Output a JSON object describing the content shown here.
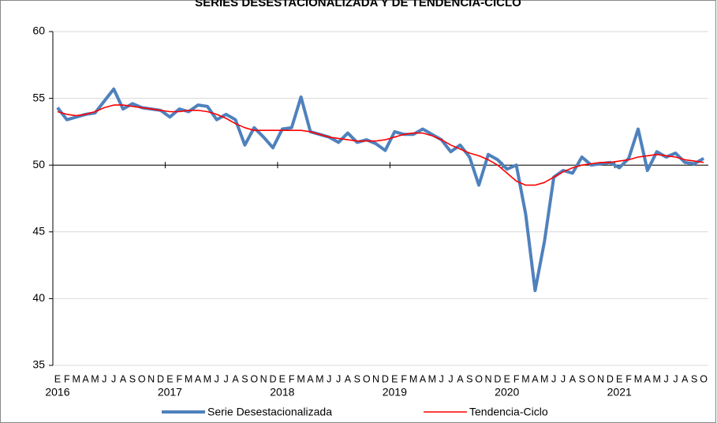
{
  "chart_data": {
    "type": "line",
    "title": "SERIES DESESTACIONALIZADA Y DE TENDENCIA-CICLO",
    "categories": [
      "E",
      "F",
      "M",
      "A",
      "M",
      "J",
      "J",
      "A",
      "S",
      "O",
      "N",
      "D",
      "E",
      "F",
      "M",
      "A",
      "M",
      "J",
      "J",
      "A",
      "S",
      "O",
      "N",
      "D",
      "E",
      "F",
      "M",
      "A",
      "M",
      "J",
      "J",
      "A",
      "S",
      "O",
      "N",
      "D",
      "E",
      "F",
      "M",
      "A",
      "M",
      "J",
      "J",
      "A",
      "S",
      "O",
      "N",
      "D",
      "E",
      "F",
      "M",
      "A",
      "M",
      "J",
      "J",
      "A",
      "S",
      "O",
      "N",
      "D",
      "E",
      "F",
      "M",
      "A",
      "M",
      "J",
      "J",
      "A",
      "S",
      "O"
    ],
    "years": [
      "2016",
      "2017",
      "2018",
      "2019",
      "2020",
      "2021"
    ],
    "series": [
      {
        "name": "Serie Desestacionalizada",
        "color": "#4f81bd",
        "width": 4,
        "values": [
          54.3,
          53.4,
          53.6,
          53.8,
          53.9,
          54.8,
          55.7,
          54.2,
          54.6,
          54.3,
          54.2,
          54.1,
          53.6,
          54.2,
          54.0,
          54.5,
          54.4,
          53.4,
          53.8,
          53.4,
          51.5,
          52.8,
          52.1,
          51.3,
          52.7,
          52.8,
          55.1,
          52.5,
          52.3,
          52.1,
          51.7,
          52.4,
          51.7,
          51.9,
          51.6,
          51.1,
          52.5,
          52.3,
          52.3,
          52.7,
          52.3,
          51.9,
          51.0,
          51.5,
          50.6,
          48.5,
          50.8,
          50.4,
          49.7,
          50.0,
          46.3,
          40.6,
          44.3,
          49.1,
          49.6,
          49.4,
          50.6,
          50.0,
          50.1,
          50.2,
          49.8,
          50.5,
          52.7,
          49.6,
          51.0,
          50.6,
          50.9,
          50.2,
          50.1,
          50.5
        ]
      },
      {
        "name": "Tendencia-Ciclo",
        "color": "#ff0000",
        "width": 1.6,
        "values": [
          54.0,
          53.8,
          53.7,
          53.8,
          54.0,
          54.3,
          54.5,
          54.5,
          54.4,
          54.3,
          54.2,
          54.1,
          54.0,
          54.0,
          54.1,
          54.1,
          54.0,
          53.8,
          53.5,
          53.1,
          52.8,
          52.6,
          52.6,
          52.6,
          52.6,
          52.6,
          52.6,
          52.5,
          52.3,
          52.1,
          52.0,
          51.9,
          51.8,
          51.8,
          51.8,
          51.9,
          52.1,
          52.3,
          52.4,
          52.4,
          52.2,
          51.9,
          51.5,
          51.2,
          50.9,
          50.7,
          50.4,
          50.0,
          49.4,
          48.8,
          48.5,
          48.5,
          48.7,
          49.1,
          49.5,
          49.8,
          50.0,
          50.1,
          50.2,
          50.2,
          50.3,
          50.4,
          50.6,
          50.7,
          50.8,
          50.7,
          50.6,
          50.4,
          50.3,
          50.2
        ]
      }
    ],
    "ylim": [
      35,
      60
    ],
    "yticks": [
      35,
      40,
      45,
      50,
      55,
      60
    ],
    "baseline": 50,
    "grid": true
  }
}
